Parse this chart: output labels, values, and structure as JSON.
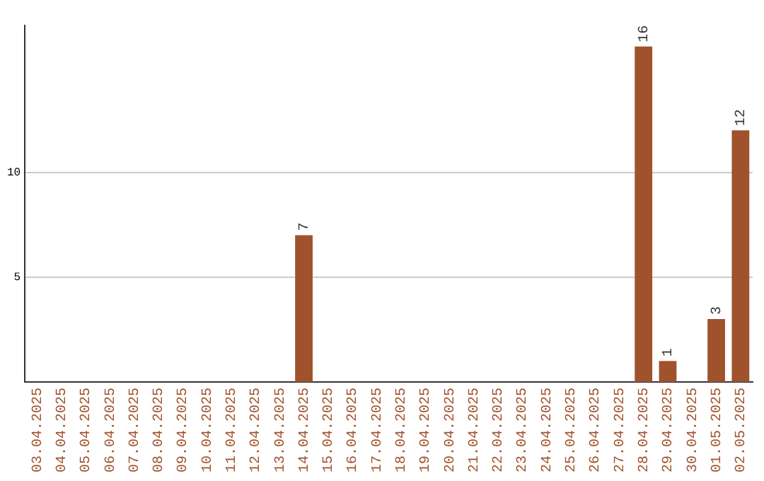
{
  "chart_data": {
    "type": "bar",
    "categories": [
      "03.04.2025",
      "04.04.2025",
      "05.04.2025",
      "06.04.2025",
      "07.04.2025",
      "08.04.2025",
      "09.04.2025",
      "10.04.2025",
      "11.04.2025",
      "12.04.2025",
      "13.04.2025",
      "14.04.2025",
      "15.04.2025",
      "16.04.2025",
      "17.04.2025",
      "18.04.2025",
      "19.04.2025",
      "20.04.2025",
      "21.04.2025",
      "22.04.2025",
      "23.04.2025",
      "24.04.2025",
      "25.04.2025",
      "26.04.2025",
      "27.04.2025",
      "28.04.2025",
      "29.04.2025",
      "30.04.2025",
      "01.05.2025",
      "02.05.2025"
    ],
    "values": [
      0,
      0,
      0,
      0,
      0,
      0,
      0,
      0,
      0,
      0,
      0,
      7,
      0,
      0,
      0,
      0,
      0,
      0,
      0,
      0,
      0,
      0,
      0,
      0,
      0,
      16,
      1,
      0,
      3,
      12
    ],
    "value_labels": [
      null,
      null,
      null,
      null,
      null,
      null,
      null,
      null,
      null,
      null,
      null,
      "7",
      null,
      null,
      null,
      null,
      null,
      null,
      null,
      null,
      null,
      null,
      null,
      null,
      null,
      "16",
      "1",
      null,
      "3",
      "12"
    ],
    "color": "#a0522d",
    "ylim": [
      0,
      17
    ],
    "yticks": [
      5,
      10
    ],
    "grid": "y"
  }
}
